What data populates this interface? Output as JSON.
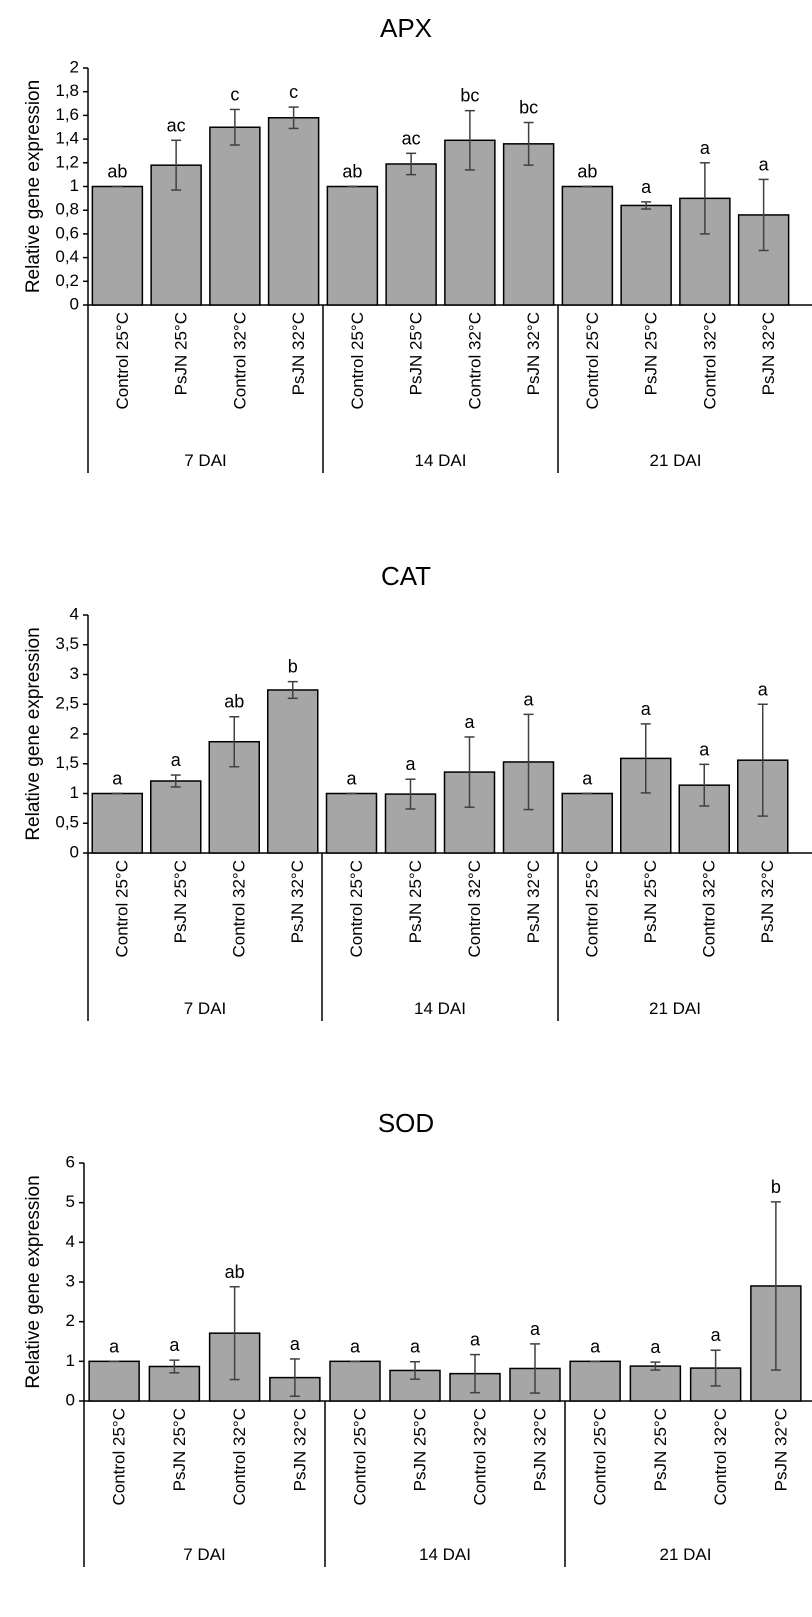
{
  "chart_data": [
    {
      "type": "bar",
      "title": "APX",
      "ylabel": "Relative gene expression",
      "ylim": [
        0,
        2
      ],
      "yticks": [
        "0",
        "0,2",
        "0,4",
        "0,6",
        "0,8",
        "1",
        "1,2",
        "1,4",
        "1,6",
        "1,8",
        "2"
      ],
      "categories": [
        "Control 25°C",
        "PsJN 25°C",
        "Control  32°C",
        "PsJN 32°C",
        "Control 25°C",
        "PsJN 25°C",
        "Control  32°C",
        "PsJN 32°C",
        "Control 25°C",
        "PsJN 25°C",
        "Control  32°C",
        "PsJN 32°C"
      ],
      "groups": [
        "7 DAI",
        "14 DAI",
        "21 DAI"
      ],
      "values": [
        1.0,
        1.18,
        1.5,
        1.58,
        1.0,
        1.19,
        1.39,
        1.36,
        1.0,
        0.84,
        0.9,
        0.76
      ],
      "error": [
        0.0,
        0.21,
        0.15,
        0.09,
        0.0,
        0.09,
        0.25,
        0.18,
        0.0,
        0.03,
        0.3,
        0.3
      ],
      "labels": [
        "ab",
        "ac",
        "c",
        "c",
        "ab",
        "ac",
        "bc",
        "bc",
        "ab",
        "a",
        "a",
        "a"
      ]
    },
    {
      "type": "bar",
      "title": "CAT",
      "ylabel": "Relative gene expression",
      "ylim": [
        0,
        4
      ],
      "yticks": [
        "0",
        "0,5",
        "1",
        "1,5",
        "2",
        "2,5",
        "3",
        "3,5",
        "4"
      ],
      "categories": [
        "Control 25°C",
        "PsJN 25°C",
        "Control  32°C",
        "PsJN 32°C",
        "Control 25°C",
        "PsJN 25°C",
        "Control  32°C",
        "PsJN 32°C",
        "Control 25°C",
        "PsJN 25°C",
        "Control  32°C",
        "PsJN 32°C"
      ],
      "groups": [
        "7 DAI",
        "14 DAI",
        "21 DAI"
      ],
      "values": [
        1.0,
        1.21,
        1.87,
        2.74,
        1.0,
        0.99,
        1.36,
        1.53,
        1.0,
        1.59,
        1.14,
        1.56
      ],
      "error": [
        0.0,
        0.1,
        0.42,
        0.14,
        0.0,
        0.25,
        0.59,
        0.8,
        0.0,
        0.58,
        0.35,
        0.94
      ],
      "labels": [
        "a",
        "a",
        "ab",
        "b",
        "a",
        "a",
        "a",
        "a",
        "a",
        "a",
        "a",
        "a"
      ]
    },
    {
      "type": "bar",
      "title": "SOD",
      "ylabel": "Relative gene expression",
      "ylim": [
        0,
        6
      ],
      "yticks": [
        "0",
        "1",
        "2",
        "3",
        "4",
        "5",
        "6"
      ],
      "categories": [
        "Control 25°C",
        "PsJN 25°C",
        "Control  32°C",
        "PsJN 32°C",
        "Control 25°C",
        "PsJN 25°C",
        "Control  32°C",
        "PsJN 32°C",
        "Control 25°C",
        "PsJN 25°C",
        "Control  32°C",
        "PsJN 32°C"
      ],
      "groups": [
        "7 DAI",
        "14 DAI",
        "21 DAI"
      ],
      "values": [
        1.0,
        0.87,
        1.71,
        0.59,
        1.0,
        0.77,
        0.69,
        0.82,
        1.0,
        0.88,
        0.83,
        2.9
      ],
      "error": [
        0.0,
        0.16,
        1.17,
        0.47,
        0.0,
        0.22,
        0.48,
        0.62,
        0.0,
        0.1,
        0.45,
        2.12
      ],
      "labels": [
        "a",
        "a",
        "ab",
        "a",
        "a",
        "a",
        "a",
        "a",
        "a",
        "a",
        "a",
        "b"
      ]
    }
  ]
}
